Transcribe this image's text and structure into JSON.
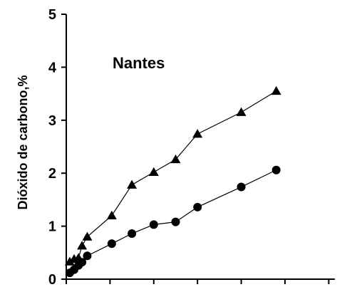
{
  "chart_data": {
    "type": "line",
    "title": "",
    "annotation": "Nantes",
    "xlabel": "",
    "ylabel": "Dióxido de carbono,%",
    "xlim": [
      0,
      30
    ],
    "ylim": [
      0,
      5
    ],
    "y_ticks": [
      0,
      1,
      2,
      3,
      4,
      5
    ],
    "x_ticks": [
      0,
      5,
      10,
      15,
      20,
      25,
      30
    ],
    "grid": false,
    "legend": "none",
    "series": [
      {
        "marker": "triangle",
        "color": "#000000",
        "x": [
          0.4,
          0.9,
          1.4,
          1.8,
          2.4,
          5.2,
          7.5,
          10.0,
          12.5,
          15.0,
          20.0,
          24.0
        ],
        "y": [
          0.33,
          0.38,
          0.4,
          0.63,
          0.8,
          1.2,
          1.78,
          2.02,
          2.26,
          2.74,
          3.15,
          3.55
        ]
      },
      {
        "marker": "circle",
        "color": "#000000",
        "x": [
          0.4,
          0.9,
          1.4,
          1.8,
          2.4,
          5.2,
          7.5,
          10.0,
          12.5,
          15.0,
          20.0,
          24.0
        ],
        "y": [
          0.12,
          0.18,
          0.26,
          0.32,
          0.44,
          0.67,
          0.86,
          1.03,
          1.08,
          1.36,
          1.74,
          2.06
        ]
      }
    ]
  }
}
